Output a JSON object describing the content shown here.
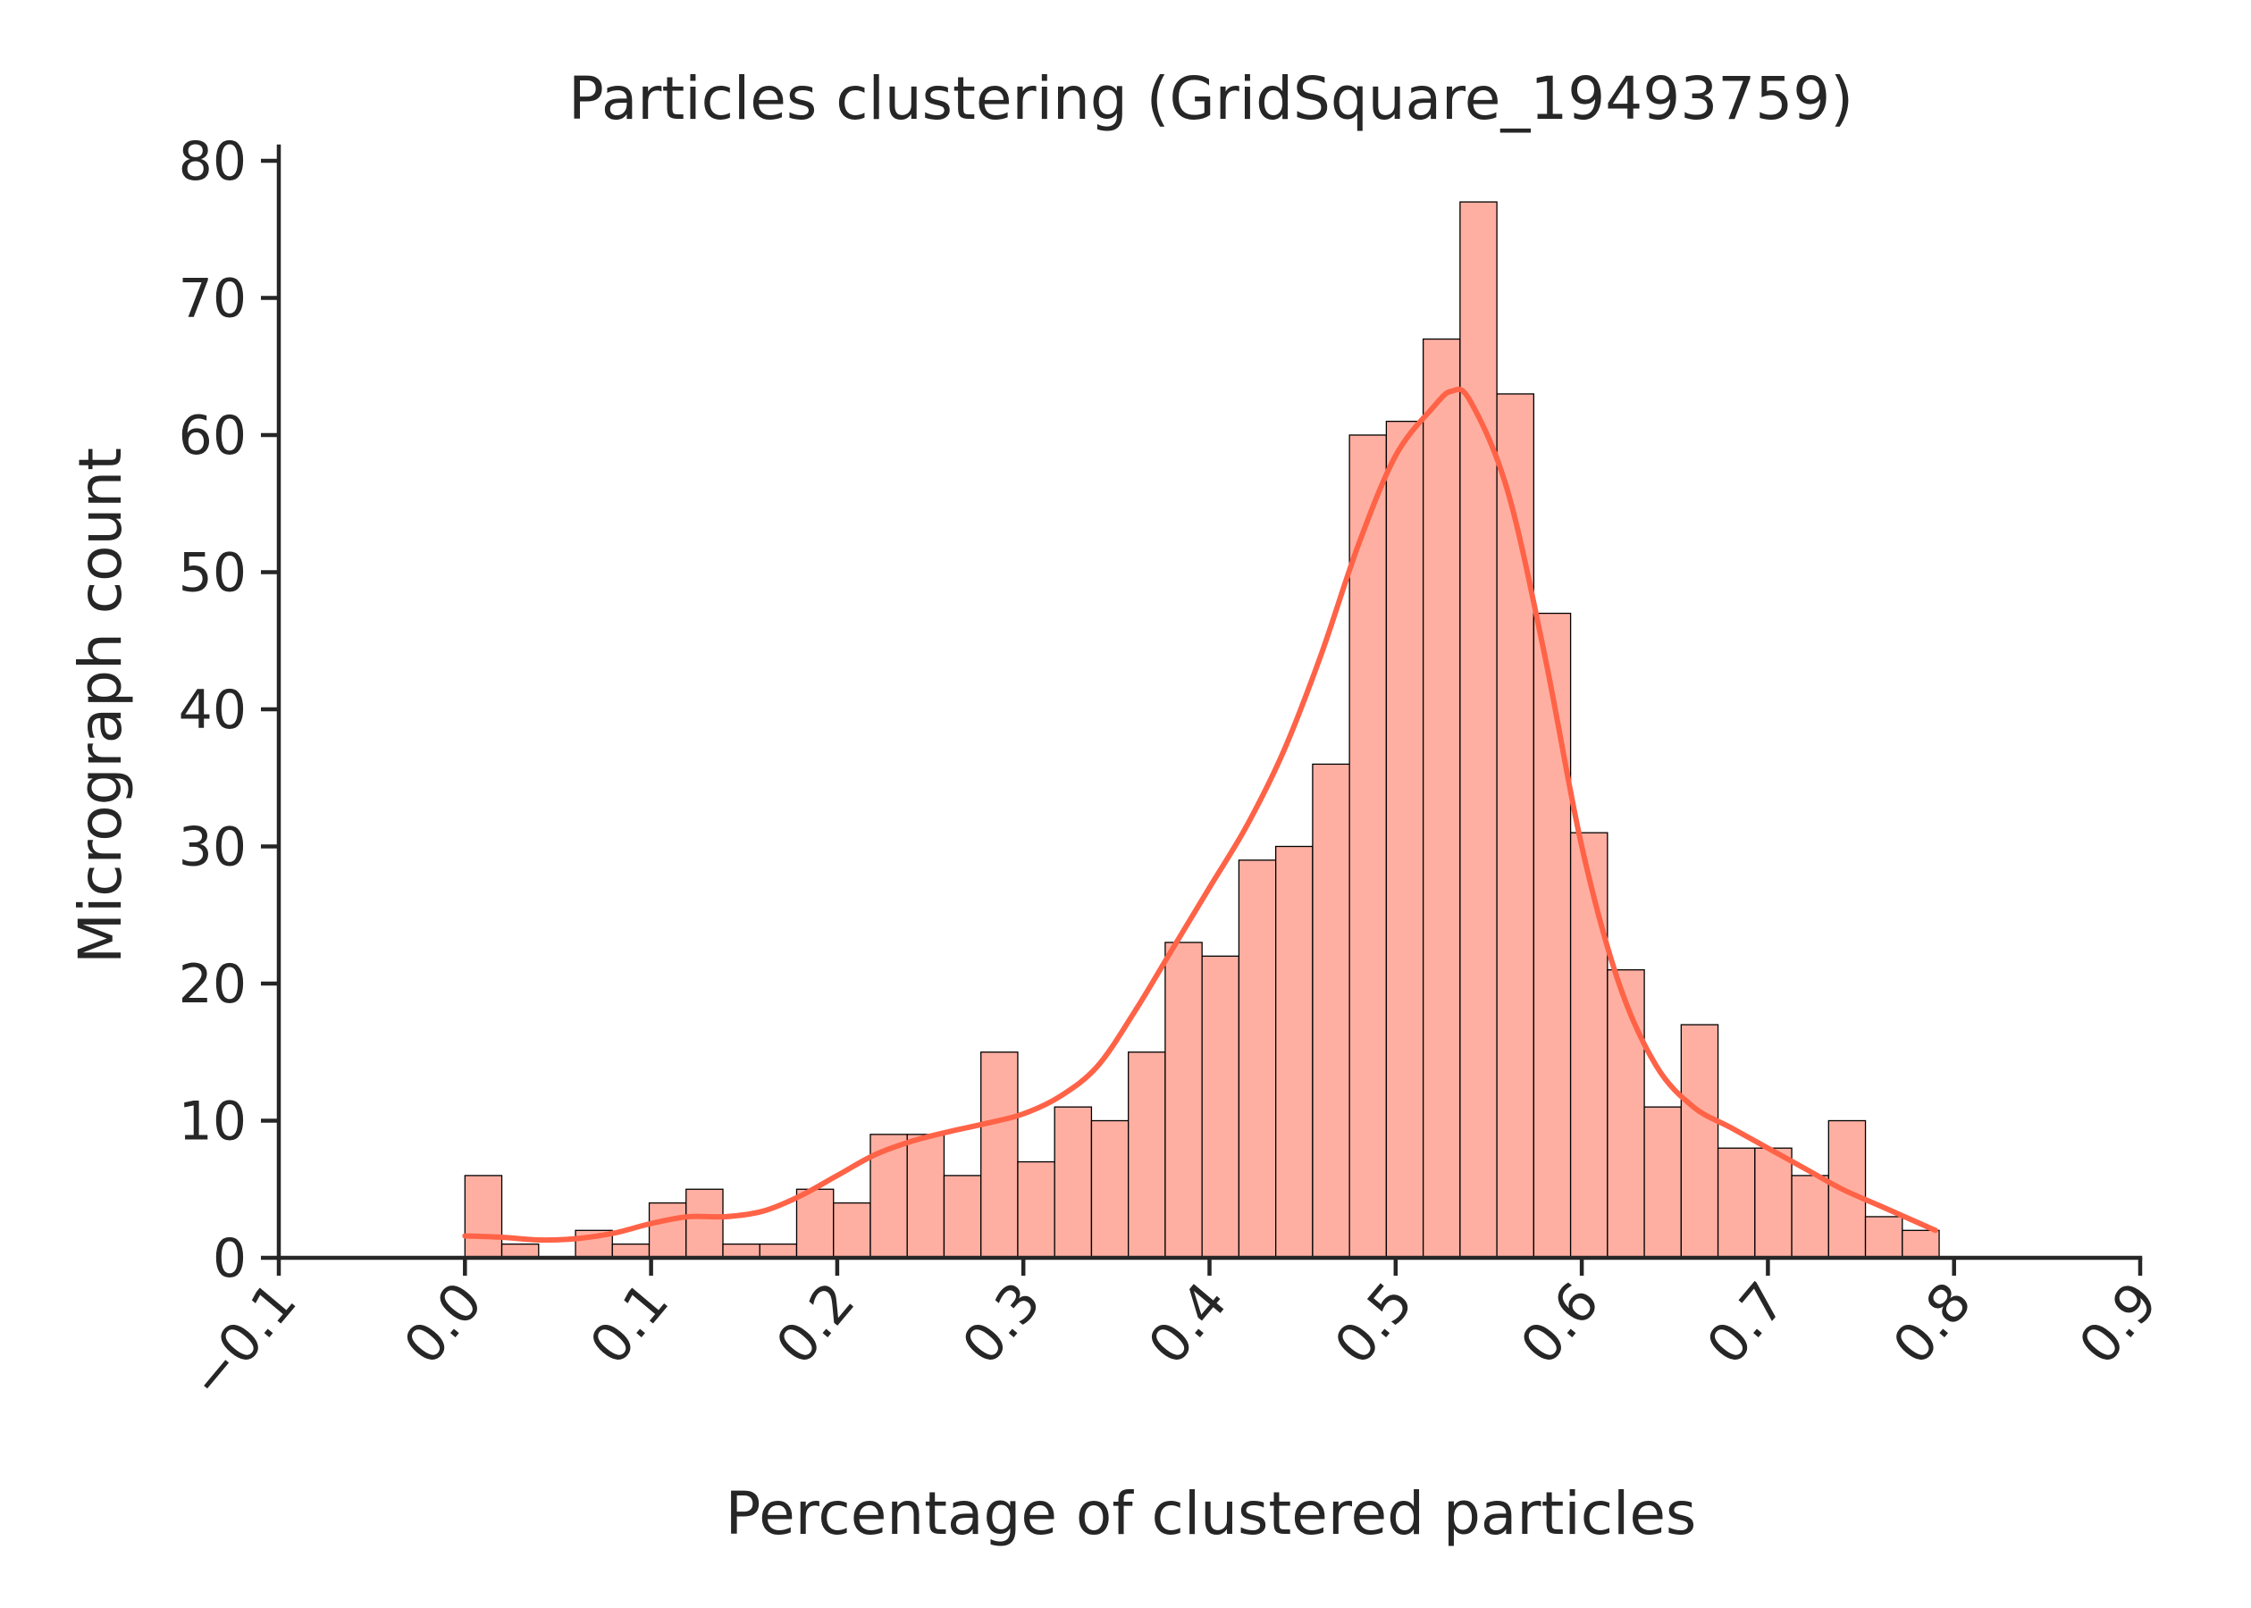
{
  "chart_data": {
    "type": "bar",
    "title": "Particles clustering (GridSquare_19493759)",
    "xlabel": "Percentage of clustered particles",
    "ylabel": "Micrograph count",
    "xlim": [
      -0.1,
      0.9
    ],
    "ylim": [
      0,
      81
    ],
    "x_ticks": [
      -0.1,
      0.0,
      0.1,
      0.2,
      0.3,
      0.4,
      0.5,
      0.6,
      0.7,
      0.8,
      0.9
    ],
    "x_tick_labels": [
      "−0.1",
      "0.0",
      "0.1",
      "0.2",
      "0.3",
      "0.4",
      "0.5",
      "0.6",
      "0.7",
      "0.8",
      "0.9"
    ],
    "y_ticks": [
      0,
      10,
      20,
      30,
      40,
      50,
      60,
      70,
      80
    ],
    "y_tick_labels": [
      "0",
      "10",
      "20",
      "30",
      "40",
      "50",
      "60",
      "70",
      "80"
    ],
    "bin_start": 0.0,
    "bin_width": 0.0198,
    "counts": [
      6,
      1,
      0,
      2,
      1,
      4,
      5,
      1,
      1,
      5,
      4,
      9,
      9,
      6,
      15,
      7,
      11,
      10,
      15,
      23,
      22,
      29,
      30,
      36,
      60,
      61,
      67,
      77,
      63,
      47,
      31,
      21,
      11,
      17,
      8,
      8,
      6,
      10,
      3,
      2
    ],
    "kde": {
      "x": [
        0.0,
        0.02,
        0.04,
        0.06,
        0.08,
        0.1,
        0.12,
        0.14,
        0.16,
        0.18,
        0.2,
        0.22,
        0.24,
        0.26,
        0.28,
        0.3,
        0.32,
        0.34,
        0.36,
        0.38,
        0.4,
        0.42,
        0.44,
        0.46,
        0.48,
        0.5,
        0.52,
        0.53,
        0.54,
        0.56,
        0.58,
        0.6,
        0.62,
        0.64,
        0.66,
        0.68,
        0.7,
        0.72,
        0.74,
        0.76,
        0.79
      ],
      "y": [
        1.6,
        1.5,
        1.3,
        1.4,
        1.8,
        2.5,
        3.0,
        3.0,
        3.4,
        4.5,
        6.0,
        7.5,
        8.5,
        9.2,
        9.8,
        10.5,
        11.8,
        14.0,
        18.0,
        22.5,
        27.0,
        31.5,
        37.0,
        44.0,
        52.0,
        58.5,
        62.0,
        63.2,
        62.5,
        56.0,
        44.0,
        30.0,
        20.0,
        14.0,
        11.0,
        9.5,
        8.0,
        6.5,
        5.0,
        3.8,
        2.0
      ]
    },
    "bar_color": "#FFAFA2",
    "bar_edge_color": "#000000",
    "line_color": "#FF6347",
    "axis_color": "#262626",
    "grid": false
  }
}
